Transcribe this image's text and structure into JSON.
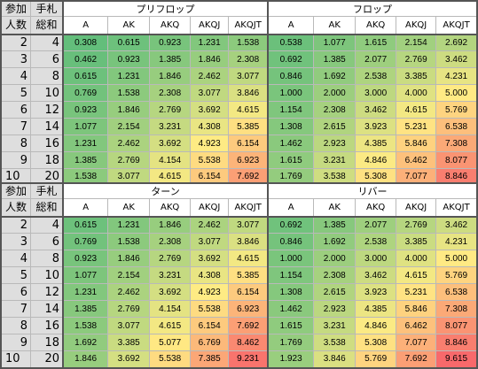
{
  "header_labels": {
    "players": "参加人数",
    "cards": "手札総和"
  },
  "hands": [
    "A",
    "AK",
    "AKQ",
    "AKQJ",
    "AKQJT"
  ],
  "tables": [
    {
      "left_title": "プリフロップ",
      "right_title": "フロップ",
      "rows": [
        {
          "players": "2",
          "cards": "4",
          "left": [
            "0.308",
            "0.615",
            "0.923",
            "1.231",
            "1.538"
          ],
          "right": [
            "0.538",
            "1.077",
            "1.615",
            "2.154",
            "2.692"
          ]
        },
        {
          "players": "3",
          "cards": "6",
          "left": [
            "0.462",
            "0.923",
            "1.385",
            "1.846",
            "2.308"
          ],
          "right": [
            "0.692",
            "1.385",
            "2.077",
            "2.769",
            "3.462"
          ]
        },
        {
          "players": "4",
          "cards": "8",
          "left": [
            "0.615",
            "1.231",
            "1.846",
            "2.462",
            "3.077"
          ],
          "right": [
            "0.846",
            "1.692",
            "2.538",
            "3.385",
            "4.231"
          ]
        },
        {
          "players": "5",
          "cards": "10",
          "left": [
            "0.769",
            "1.538",
            "2.308",
            "3.077",
            "3.846"
          ],
          "right": [
            "1.000",
            "2.000",
            "3.000",
            "4.000",
            "5.000"
          ]
        },
        {
          "players": "6",
          "cards": "12",
          "left": [
            "0.923",
            "1.846",
            "2.769",
            "3.692",
            "4.615"
          ],
          "right": [
            "1.154",
            "2.308",
            "3.462",
            "4.615",
            "5.769"
          ]
        },
        {
          "players": "7",
          "cards": "14",
          "left": [
            "1.077",
            "2.154",
            "3.231",
            "4.308",
            "5.385"
          ],
          "right": [
            "1.308",
            "2.615",
            "3.923",
            "5.231",
            "6.538"
          ]
        },
        {
          "players": "8",
          "cards": "16",
          "left": [
            "1.231",
            "2.462",
            "3.692",
            "4.923",
            "6.154"
          ],
          "right": [
            "1.462",
            "2.923",
            "4.385",
            "5.846",
            "7.308"
          ]
        },
        {
          "players": "9",
          "cards": "18",
          "left": [
            "1.385",
            "2.769",
            "4.154",
            "5.538",
            "6.923"
          ],
          "right": [
            "1.615",
            "3.231",
            "4.846",
            "6.462",
            "8.077"
          ]
        },
        {
          "players": "10",
          "cards": "20",
          "left": [
            "1.538",
            "3.077",
            "4.615",
            "6.154",
            "7.692"
          ],
          "right": [
            "1.769",
            "3.538",
            "5.308",
            "7.077",
            "8.846"
          ]
        }
      ]
    },
    {
      "left_title": "ターン",
      "right_title": "リバー",
      "rows": [
        {
          "players": "2",
          "cards": "4",
          "left": [
            "0.615",
            "1.231",
            "1.846",
            "2.462",
            "3.077"
          ],
          "right": [
            "0.692",
            "1.385",
            "2.077",
            "2.769",
            "3.462"
          ]
        },
        {
          "players": "3",
          "cards": "6",
          "left": [
            "0.769",
            "1.538",
            "2.308",
            "3.077",
            "3.846"
          ],
          "right": [
            "0.846",
            "1.692",
            "2.538",
            "3.385",
            "4.231"
          ]
        },
        {
          "players": "4",
          "cards": "8",
          "left": [
            "0.923",
            "1.846",
            "2.769",
            "3.692",
            "4.615"
          ],
          "right": [
            "1.000",
            "2.000",
            "3.000",
            "4.000",
            "5.000"
          ]
        },
        {
          "players": "5",
          "cards": "10",
          "left": [
            "1.077",
            "2.154",
            "3.231",
            "4.308",
            "5.385"
          ],
          "right": [
            "1.154",
            "2.308",
            "3.462",
            "4.615",
            "5.769"
          ]
        },
        {
          "players": "6",
          "cards": "12",
          "left": [
            "1.231",
            "2.462",
            "3.692",
            "4.923",
            "6.154"
          ],
          "right": [
            "1.308",
            "2.615",
            "3.923",
            "5.231",
            "6.538"
          ]
        },
        {
          "players": "7",
          "cards": "14",
          "left": [
            "1.385",
            "2.769",
            "4.154",
            "5.538",
            "6.923"
          ],
          "right": [
            "1.462",
            "2.923",
            "4.385",
            "5.846",
            "7.308"
          ]
        },
        {
          "players": "8",
          "cards": "16",
          "left": [
            "1.538",
            "3.077",
            "4.615",
            "6.154",
            "7.692"
          ],
          "right": [
            "1.615",
            "3.231",
            "4.846",
            "6.462",
            "8.077"
          ]
        },
        {
          "players": "9",
          "cards": "18",
          "left": [
            "1.692",
            "3.385",
            "5.077",
            "6.769",
            "8.462"
          ],
          "right": [
            "1.769",
            "3.538",
            "5.308",
            "7.077",
            "8.846"
          ]
        },
        {
          "players": "10",
          "cards": "20",
          "left": [
            "1.846",
            "3.692",
            "5.538",
            "7.385",
            "9.231"
          ],
          "right": [
            "1.923",
            "3.846",
            "5.769",
            "7.692",
            "9.615"
          ]
        }
      ]
    }
  ],
  "color_scale": {
    "low": "#63be7b",
    "mid": "#ffeb84",
    "high": "#f8696b",
    "min_value": 0.308,
    "max_value": 9.615
  }
}
